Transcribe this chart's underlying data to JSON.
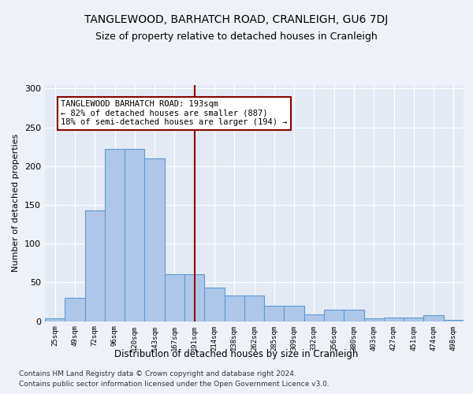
{
  "title": "TANGLEWOOD, BARHATCH ROAD, CRANLEIGH, GU6 7DJ",
  "subtitle": "Size of property relative to detached houses in Cranleigh",
  "xlabel": "Distribution of detached houses by size in Cranleigh",
  "ylabel": "Number of detached properties",
  "categories": [
    "25sqm",
    "49sqm",
    "72sqm",
    "96sqm",
    "120sqm",
    "143sqm",
    "167sqm",
    "191sqm",
    "214sqm",
    "238sqm",
    "262sqm",
    "285sqm",
    "309sqm",
    "332sqm",
    "356sqm",
    "380sqm",
    "403sqm",
    "427sqm",
    "451sqm",
    "474sqm",
    "498sqm"
  ],
  "values": [
    4,
    30,
    143,
    222,
    222,
    210,
    60,
    60,
    43,
    33,
    33,
    20,
    20,
    9,
    15,
    15,
    4,
    5,
    5,
    8,
    2
  ],
  "bar_color": "#aec6e8",
  "bar_edge_color": "#5b9bd5",
  "bar_edge_width": 0.8,
  "vline_color": "#8b0000",
  "annotation_text": "TANGLEWOOD BARHATCH ROAD: 193sqm\n← 82% of detached houses are smaller (887)\n18% of semi-detached houses are larger (194) →",
  "annotation_box_edge_color": "#8b0000",
  "annotation_fontsize": 7.5,
  "ylim": [
    0,
    305
  ],
  "yticks": [
    0,
    50,
    100,
    150,
    200,
    250,
    300
  ],
  "title_fontsize": 10,
  "subtitle_fontsize": 9,
  "xlabel_fontsize": 8.5,
  "ylabel_fontsize": 8,
  "footer_line1": "Contains HM Land Registry data © Crown copyright and database right 2024.",
  "footer_line2": "Contains public sector information licensed under the Open Government Licence v3.0.",
  "footer_fontsize": 6.5,
  "background_color": "#eef2f8",
  "grid_color": "#ffffff",
  "axes_bg_color": "#e4eaf4"
}
